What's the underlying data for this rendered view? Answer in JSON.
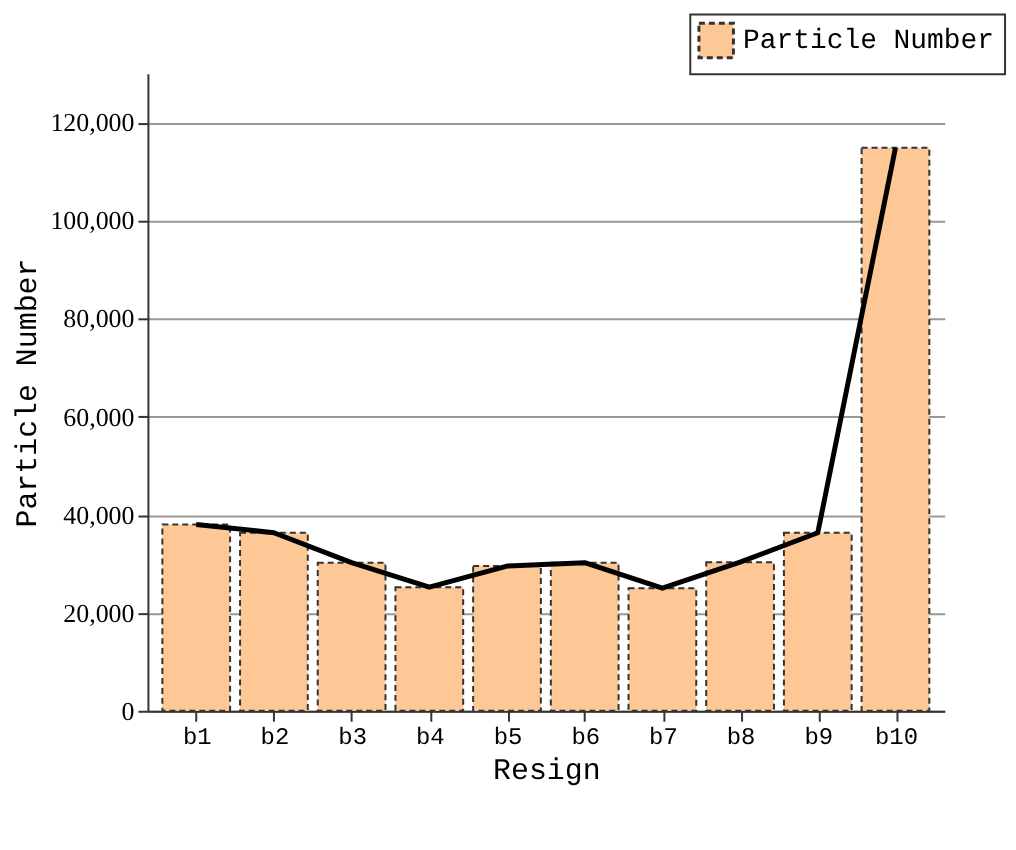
{
  "chart_data": {
    "type": "bar",
    "xlabel": "Resign",
    "ylabel": "Particle Number",
    "categories": [
      "b1",
      "b2",
      "b3",
      "b4",
      "b5",
      "b6",
      "b7",
      "b8",
      "b9",
      "b10"
    ],
    "series": [
      {
        "name": "Particle Number",
        "color": "#fdc895",
        "values": [
          38000,
          36300,
          30200,
          25200,
          29500,
          30200,
          25000,
          30300,
          36300,
          114800
        ]
      },
      {
        "type": "line",
        "color": "#000000",
        "line_style": "solid",
        "values": [
          38000,
          36300,
          30200,
          25200,
          29500,
          30200,
          25000,
          30300,
          36300,
          114800
        ]
      }
    ],
    "ylim": [
      0,
      130000
    ],
    "yticks": [
      {
        "value": 0,
        "label": "0"
      },
      {
        "value": 20000,
        "label": "20,000"
      },
      {
        "value": 40000,
        "label": "40,000"
      },
      {
        "value": 60000,
        "label": "60,000"
      },
      {
        "value": 80000,
        "label": "80,000"
      },
      {
        "value": 100000,
        "label": "100,000"
      },
      {
        "value": 120000,
        "label": "120,000"
      }
    ],
    "grid": "y",
    "legend": "top right"
  }
}
